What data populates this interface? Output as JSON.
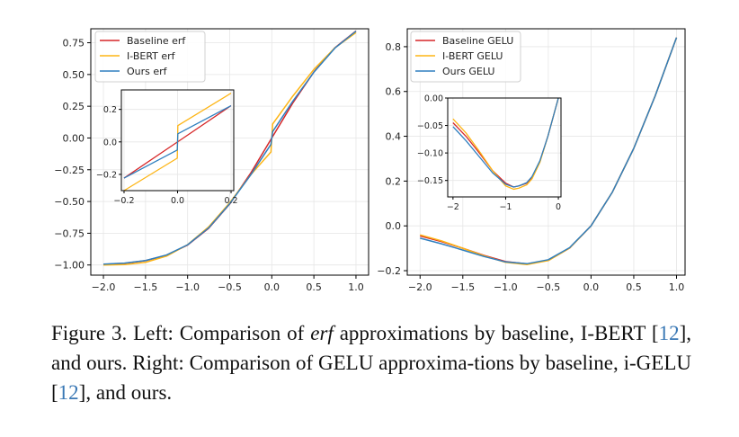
{
  "colors": {
    "baseline": "#d62728",
    "ibert": "#fdb515",
    "ours": "#2f7fbf"
  },
  "chart_data": [
    {
      "type": "line",
      "panel": "left",
      "title": "",
      "xlabel": "",
      "ylabel": "",
      "xlim": [
        -2.15,
        1.15
      ],
      "ylim": [
        -1.08,
        0.86
      ],
      "grid": true,
      "legend_position": "top-left",
      "xticks": [
        "−2.0",
        "−1.5",
        "−1.0",
        "−0.5",
        "0.0",
        "0.5",
        "1.0"
      ],
      "xtick_values": [
        -2.0,
        -1.5,
        -1.0,
        -0.5,
        0.0,
        0.5,
        1.0
      ],
      "yticks": [
        "−1.00",
        "−0.75",
        "−0.50",
        "−0.25",
        "0.00",
        "0.25",
        "0.50",
        "0.75"
      ],
      "ytick_values": [
        -1.0,
        -0.75,
        -0.5,
        -0.25,
        0.0,
        0.25,
        0.5,
        0.75
      ],
      "x": [
        -2.0,
        -1.75,
        -1.5,
        -1.25,
        -1.0,
        -0.75,
        -0.5,
        -0.25,
        -0.01,
        0.01,
        0.25,
        0.5,
        0.75,
        1.0
      ],
      "series": [
        {
          "name": "Baseline erf",
          "color_key": "baseline",
          "values": [
            -0.995,
            -0.987,
            -0.966,
            -0.923,
            -0.843,
            -0.711,
            -0.52,
            -0.276,
            -0.011,
            0.011,
            0.276,
            0.52,
            0.711,
            0.843
          ]
        },
        {
          "name": "I-BERT erf",
          "color_key": "ibert",
          "values": [
            -1.0,
            -0.997,
            -0.979,
            -0.93,
            -0.84,
            -0.7,
            -0.51,
            -0.29,
            -0.11,
            0.11,
            0.33,
            0.54,
            0.71,
            0.83
          ]
        },
        {
          "name": "Ours erf",
          "color_key": "ours",
          "values": [
            -0.993,
            -0.985,
            -0.965,
            -0.921,
            -0.841,
            -0.708,
            -0.518,
            -0.29,
            -0.05,
            0.05,
            0.29,
            0.518,
            0.708,
            0.841
          ]
        }
      ],
      "inset": {
        "xlim": [
          -0.21,
          0.21
        ],
        "ylim": [
          -0.3,
          0.32
        ],
        "xticks": [
          "−0.2",
          "0.0",
          "0.2"
        ],
        "xtick_values": [
          -0.2,
          0.0,
          0.2
        ],
        "yticks": [
          "−0.2",
          "0.0",
          "0.2"
        ],
        "ytick_values": [
          -0.2,
          0.0,
          0.2
        ],
        "x": [
          -0.2,
          -0.001,
          0.001,
          0.2
        ],
        "series": [
          {
            "color_key": "baseline",
            "values": [
              -0.223,
              -0.001,
              0.001,
              0.223
            ]
          },
          {
            "color_key": "ibert",
            "values": [
              -0.3,
              -0.1,
              0.1,
              0.3
            ]
          },
          {
            "color_key": "ours",
            "values": [
              -0.223,
              -0.05,
              0.05,
              0.223
            ]
          }
        ]
      }
    },
    {
      "type": "line",
      "panel": "right",
      "title": "",
      "xlabel": "",
      "ylabel": "",
      "xlim": [
        -2.15,
        1.1
      ],
      "ylim": [
        -0.22,
        0.88
      ],
      "grid": true,
      "legend_position": "top-left",
      "xticks": [
        "−2.0",
        "−1.5",
        "−1.0",
        "−0.5",
        "0.0",
        "0.5",
        "1.0"
      ],
      "xtick_values": [
        -2.0,
        -1.5,
        -1.0,
        -0.5,
        0.0,
        0.5,
        1.0
      ],
      "yticks": [
        "−0.2",
        "0.0",
        "0.2",
        "0.4",
        "0.6",
        "0.8"
      ],
      "ytick_values": [
        -0.2,
        0.0,
        0.2,
        0.4,
        0.6,
        0.8
      ],
      "x": [
        -2.0,
        -1.75,
        -1.5,
        -1.25,
        -1.0,
        -0.75,
        -0.5,
        -0.25,
        0.0,
        0.25,
        0.5,
        0.75,
        1.0
      ],
      "series": [
        {
          "name": "Baseline GELU",
          "color_key": "baseline",
          "values": [
            -0.045,
            -0.07,
            -0.1,
            -0.132,
            -0.159,
            -0.17,
            -0.154,
            -0.099,
            0.0,
            0.151,
            0.346,
            0.58,
            0.841
          ]
        },
        {
          "name": "I-BERT GELU",
          "color_key": "ibert",
          "values": [
            -0.04,
            -0.067,
            -0.1,
            -0.134,
            -0.163,
            -0.173,
            -0.155,
            -0.099,
            0.0,
            0.151,
            0.346,
            0.58,
            0.841
          ]
        },
        {
          "name": "Ours GELU",
          "color_key": "ours",
          "values": [
            -0.055,
            -0.08,
            -0.108,
            -0.137,
            -0.161,
            -0.169,
            -0.151,
            -0.097,
            0.0,
            0.151,
            0.346,
            0.58,
            0.841
          ]
        }
      ],
      "inset": {
        "xlim": [
          -2.1,
          0.05
        ],
        "ylim": [
          -0.18,
          0.0
        ],
        "xticks": [
          "−2",
          "−1",
          "0"
        ],
        "xtick_values": [
          -2,
          -1,
          0
        ],
        "yticks": [
          "−0.15",
          "−0.10",
          "−0.05",
          "0.00"
        ],
        "ytick_values": [
          -0.15,
          -0.1,
          -0.05,
          0.0
        ],
        "x": [
          -2.0,
          -1.75,
          -1.5,
          -1.25,
          -1.0,
          -0.85,
          -0.75,
          -0.6,
          -0.5,
          -0.35,
          -0.2,
          0.0
        ],
        "series": [
          {
            "color_key": "baseline",
            "values": [
              -0.045,
              -0.07,
              -0.1,
              -0.132,
              -0.155,
              -0.162,
              -0.16,
              -0.155,
              -0.145,
              -0.115,
              -0.07,
              0.0
            ]
          },
          {
            "color_key": "ibert",
            "values": [
              -0.038,
              -0.064,
              -0.097,
              -0.132,
              -0.16,
              -0.166,
              -0.164,
              -0.158,
              -0.147,
              -0.117,
              -0.07,
              0.0
            ]
          },
          {
            "color_key": "ours",
            "values": [
              -0.052,
              -0.078,
              -0.107,
              -0.136,
              -0.157,
              -0.162,
              -0.16,
              -0.154,
              -0.143,
              -0.114,
              -0.07,
              0.0
            ]
          }
        ]
      }
    }
  ],
  "caption": {
    "label": "Figure 3.",
    "part1": " Left: Comparison of ",
    "italic": "erf",
    "part2": " approximations by baseline, I-BERT [",
    "ref1": "12",
    "part3": "], and ours. Right: Comparison of GELU approxima-tions by baseline, i-GELU [",
    "ref2": "12",
    "part4": "], and ours."
  }
}
